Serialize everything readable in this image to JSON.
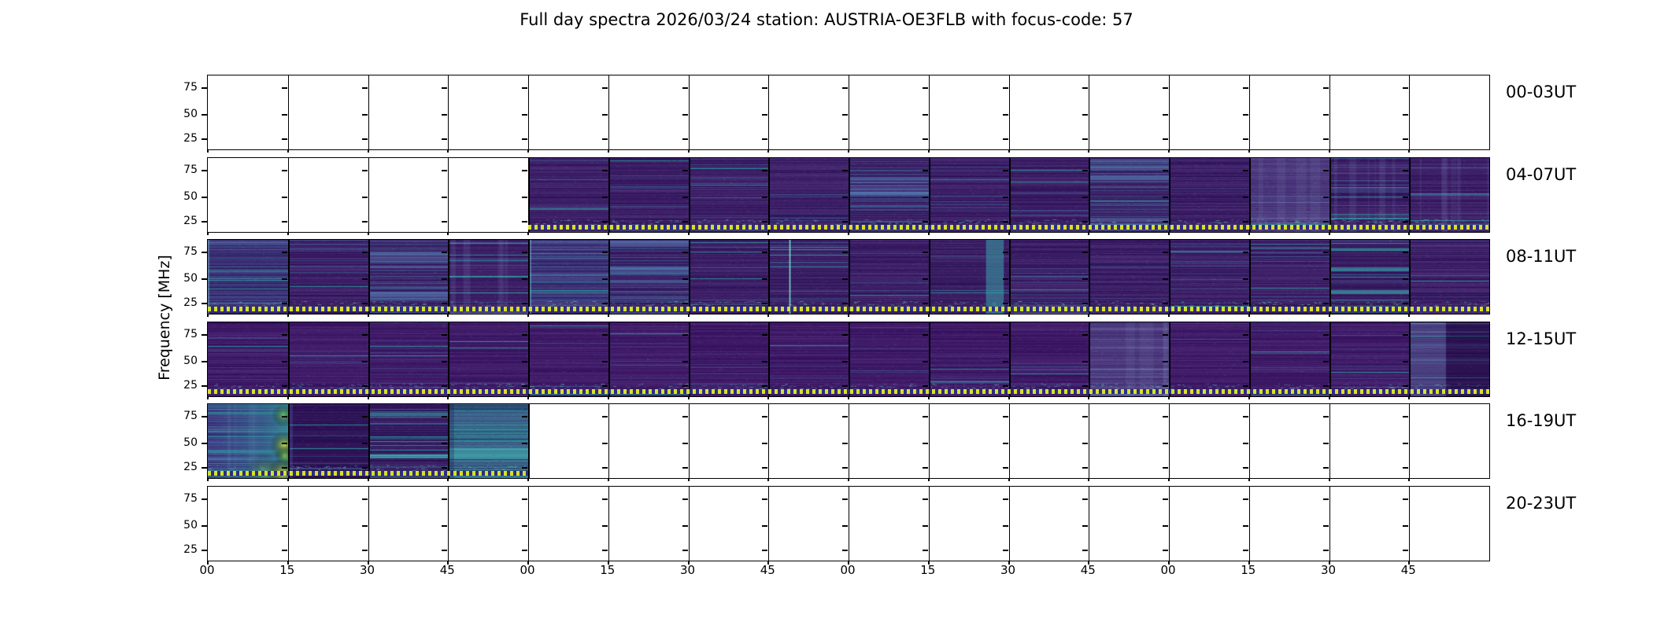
{
  "title": "Full day spectra 2026/03/24 station: AUSTRIA-OE3FLB with focus-code: 57",
  "colors": {
    "background": "#ffffff",
    "axis": "#000000",
    "spectrogram_dark": "#3c1f66",
    "spectrogram_blue": "#46689e",
    "spectrogram_teal": "#2f8f96",
    "spectrogram_bright": "#cde24a",
    "marker_yellow": "#d9e026",
    "marker_gap": "#2a2e86"
  },
  "chart_data": {
    "type": "heatmap",
    "title": "Full day spectra 2026/03/24 station: AUSTRIA-OE3FLB with focus-code: 57",
    "date": "2026/03/24",
    "station": "AUSTRIA-OE3FLB",
    "focus_code": "57",
    "ylabel": "Frequency [MHz]",
    "y_tick_labels": [
      "75",
      "50",
      "25"
    ],
    "x_tick_labels": [
      "00",
      "15",
      "30",
      "45",
      "00",
      "15",
      "30",
      "45",
      "00",
      "15",
      "30",
      "45",
      "00",
      "15",
      "30",
      "45"
    ],
    "x_axis_unit": "minutes past hour, 4 hours per row",
    "marker_line_note": "yellow dotted line along bottom of recorded segments",
    "rows": [
      {
        "label": "00-03UT",
        "quarters": [
          null,
          null,
          null,
          null,
          null,
          null,
          null,
          null,
          null,
          null,
          null,
          null,
          null,
          null,
          null,
          null
        ]
      },
      {
        "label": "04-07UT",
        "quarters": [
          null,
          null,
          null,
          null,
          "dark",
          "dark",
          "dark",
          "dark",
          "striped",
          "dark",
          "dark",
          "striped",
          "dark",
          "hazy",
          "vstreak",
          "vstreak"
        ]
      },
      {
        "label": "08-11UT",
        "quarters": [
          "blue",
          "dark",
          "striped",
          "vstreak",
          "blue",
          "striped",
          "dark",
          "brightline",
          "dark",
          "tealv",
          "dark",
          "dark",
          "dark",
          "dark",
          "tealband",
          "dark"
        ]
      },
      {
        "label": "12-15UT",
        "quarters": [
          "dark4",
          "dark4",
          "dark4",
          "dark4",
          "dark4",
          "dark4",
          "dark4",
          "dark4",
          "dark4",
          "dark4",
          "dark4",
          "hazy",
          "dark4",
          "dark4",
          "dark4",
          "split"
        ]
      },
      {
        "label": "16-19UT",
        "quarters": [
          "burst",
          "vdark",
          "tealband",
          "teal",
          null,
          null,
          null,
          null,
          null,
          null,
          null,
          null,
          null,
          null,
          null,
          null
        ]
      },
      {
        "label": "20-23UT",
        "quarters": [
          null,
          null,
          null,
          null,
          null,
          null,
          null,
          null,
          null,
          null,
          null,
          null,
          null,
          null,
          null,
          null
        ]
      }
    ]
  }
}
